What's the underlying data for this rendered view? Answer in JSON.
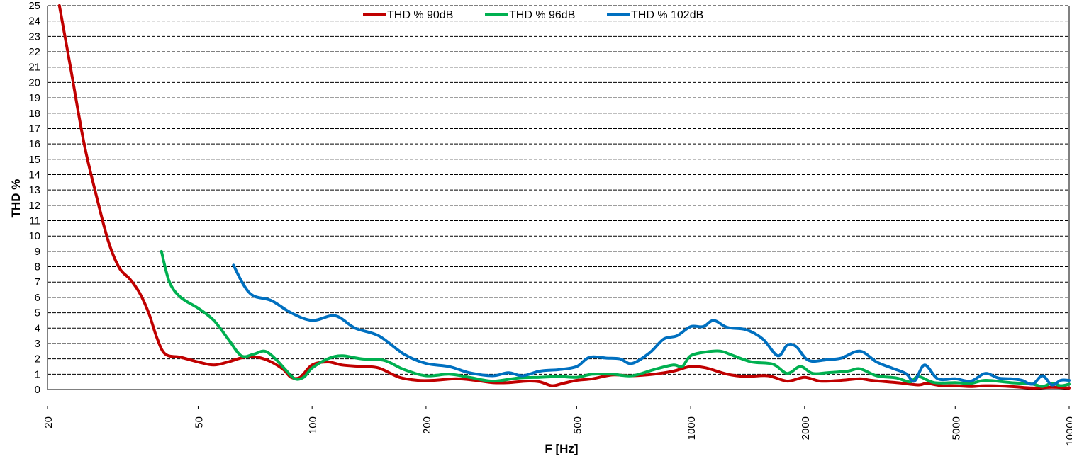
{
  "chart_data": {
    "type": "line",
    "xlabel": "F [Hz]",
    "ylabel": "THD %",
    "x_scale": "log",
    "xlim": [
      20,
      10000
    ],
    "ylim": [
      0,
      25
    ],
    "x_ticks": [
      20,
      50,
      100,
      200,
      500,
      1000,
      2000,
      5000,
      10000
    ],
    "y_ticks": [
      0,
      1,
      2,
      3,
      4,
      5,
      6,
      7,
      8,
      9,
      10,
      11,
      12,
      13,
      14,
      15,
      16,
      17,
      18,
      19,
      20,
      21,
      22,
      23,
      24,
      25
    ],
    "grid": "horizontal dashed",
    "legend_position": "top-center",
    "series": [
      {
        "name": "THD % 90dB",
        "color": "#c00000",
        "points": [
          [
            21.5,
            25
          ],
          [
            23,
            21
          ],
          [
            25,
            16
          ],
          [
            27,
            12.5
          ],
          [
            29,
            9.6
          ],
          [
            31,
            7.9
          ],
          [
            33,
            7.2
          ],
          [
            35,
            6.3
          ],
          [
            37,
            5
          ],
          [
            39,
            3.3
          ],
          [
            41,
            2.3
          ],
          [
            45,
            2.1
          ],
          [
            50,
            1.8
          ],
          [
            55,
            1.6
          ],
          [
            60,
            1.8
          ],
          [
            66,
            2.1
          ],
          [
            72,
            2.1
          ],
          [
            78,
            1.8
          ],
          [
            84,
            1.3
          ],
          [
            88,
            0.8
          ],
          [
            93,
            0.8
          ],
          [
            100,
            1.6
          ],
          [
            110,
            1.8
          ],
          [
            120,
            1.6
          ],
          [
            135,
            1.5
          ],
          [
            150,
            1.4
          ],
          [
            170,
            0.8
          ],
          [
            190,
            0.6
          ],
          [
            210,
            0.6
          ],
          [
            240,
            0.7
          ],
          [
            270,
            0.6
          ],
          [
            300,
            0.45
          ],
          [
            330,
            0.45
          ],
          [
            370,
            0.55
          ],
          [
            400,
            0.5
          ],
          [
            430,
            0.25
          ],
          [
            460,
            0.4
          ],
          [
            500,
            0.6
          ],
          [
            550,
            0.7
          ],
          [
            620,
            0.95
          ],
          [
            700,
            0.9
          ],
          [
            800,
            1.0
          ],
          [
            900,
            1.2
          ],
          [
            1000,
            1.5
          ],
          [
            1100,
            1.4
          ],
          [
            1250,
            1.0
          ],
          [
            1400,
            0.85
          ],
          [
            1600,
            0.9
          ],
          [
            1800,
            0.55
          ],
          [
            2000,
            0.8
          ],
          [
            2200,
            0.55
          ],
          [
            2500,
            0.6
          ],
          [
            2800,
            0.7
          ],
          [
            3000,
            0.6
          ],
          [
            3500,
            0.45
          ],
          [
            4000,
            0.3
          ],
          [
            4200,
            0.4
          ],
          [
            4600,
            0.25
          ],
          [
            5000,
            0.25
          ],
          [
            5500,
            0.2
          ],
          [
            6000,
            0.25
          ],
          [
            7000,
            0.2
          ],
          [
            8000,
            0.1
          ],
          [
            9000,
            0.15
          ],
          [
            10000,
            0.1
          ]
        ]
      },
      {
        "name": "THD % 96dB",
        "color": "#00b050",
        "points": [
          [
            40,
            9
          ],
          [
            42,
            7
          ],
          [
            45,
            6
          ],
          [
            50,
            5.3
          ],
          [
            55,
            4.5
          ],
          [
            60,
            3.3
          ],
          [
            65,
            2.2
          ],
          [
            70,
            2.3
          ],
          [
            75,
            2.5
          ],
          [
            80,
            2.0
          ],
          [
            85,
            1.3
          ],
          [
            90,
            0.7
          ],
          [
            95,
            0.8
          ],
          [
            100,
            1.4
          ],
          [
            110,
            2.0
          ],
          [
            120,
            2.2
          ],
          [
            135,
            2.0
          ],
          [
            155,
            1.9
          ],
          [
            175,
            1.3
          ],
          [
            200,
            0.9
          ],
          [
            230,
            1.0
          ],
          [
            260,
            0.8
          ],
          [
            300,
            0.55
          ],
          [
            350,
            0.75
          ],
          [
            400,
            0.8
          ],
          [
            450,
            0.85
          ],
          [
            500,
            0.8
          ],
          [
            550,
            1.0
          ],
          [
            620,
            1.0
          ],
          [
            700,
            0.9
          ],
          [
            800,
            1.3
          ],
          [
            900,
            1.6
          ],
          [
            950,
            1.5
          ],
          [
            1000,
            2.2
          ],
          [
            1100,
            2.45
          ],
          [
            1200,
            2.5
          ],
          [
            1300,
            2.2
          ],
          [
            1450,
            1.8
          ],
          [
            1650,
            1.65
          ],
          [
            1800,
            1.05
          ],
          [
            1950,
            1.5
          ],
          [
            2100,
            1.05
          ],
          [
            2300,
            1.1
          ],
          [
            2600,
            1.2
          ],
          [
            2800,
            1.35
          ],
          [
            3100,
            0.9
          ],
          [
            3500,
            0.75
          ],
          [
            3800,
            0.5
          ],
          [
            4000,
            0.85
          ],
          [
            4400,
            0.45
          ],
          [
            5000,
            0.45
          ],
          [
            5500,
            0.4
          ],
          [
            6000,
            0.6
          ],
          [
            7000,
            0.45
          ],
          [
            8000,
            0.35
          ],
          [
            8500,
            0.2
          ],
          [
            9000,
            0.4
          ],
          [
            9500,
            0.25
          ],
          [
            10000,
            0.35
          ]
        ]
      },
      {
        "name": "THD % 102dB",
        "color": "#0070c0",
        "points": [
          [
            62,
            8.1
          ],
          [
            66,
            6.8
          ],
          [
            70,
            6.1
          ],
          [
            78,
            5.8
          ],
          [
            88,
            5.0
          ],
          [
            100,
            4.5
          ],
          [
            115,
            4.8
          ],
          [
            130,
            4.0
          ],
          [
            150,
            3.5
          ],
          [
            175,
            2.3
          ],
          [
            200,
            1.7
          ],
          [
            230,
            1.5
          ],
          [
            260,
            1.1
          ],
          [
            300,
            0.9
          ],
          [
            330,
            1.1
          ],
          [
            360,
            0.9
          ],
          [
            400,
            1.2
          ],
          [
            450,
            1.3
          ],
          [
            500,
            1.5
          ],
          [
            540,
            2.1
          ],
          [
            600,
            2.05
          ],
          [
            650,
            2.0
          ],
          [
            700,
            1.7
          ],
          [
            780,
            2.4
          ],
          [
            850,
            3.3
          ],
          [
            920,
            3.5
          ],
          [
            1000,
            4.1
          ],
          [
            1080,
            4.1
          ],
          [
            1150,
            4.5
          ],
          [
            1250,
            4.05
          ],
          [
            1400,
            3.9
          ],
          [
            1550,
            3.3
          ],
          [
            1700,
            2.2
          ],
          [
            1800,
            2.9
          ],
          [
            1900,
            2.8
          ],
          [
            2050,
            1.9
          ],
          [
            2300,
            1.95
          ],
          [
            2500,
            2.05
          ],
          [
            2800,
            2.5
          ],
          [
            3100,
            1.8
          ],
          [
            3400,
            1.4
          ],
          [
            3700,
            1.05
          ],
          [
            3900,
            0.55
          ],
          [
            4150,
            1.6
          ],
          [
            4500,
            0.7
          ],
          [
            5000,
            0.7
          ],
          [
            5500,
            0.55
          ],
          [
            6000,
            1.05
          ],
          [
            6500,
            0.75
          ],
          [
            7000,
            0.7
          ],
          [
            7500,
            0.6
          ],
          [
            8000,
            0.35
          ],
          [
            8500,
            0.9
          ],
          [
            9000,
            0.3
          ],
          [
            9500,
            0.6
          ],
          [
            10000,
            0.6
          ]
        ]
      }
    ]
  }
}
